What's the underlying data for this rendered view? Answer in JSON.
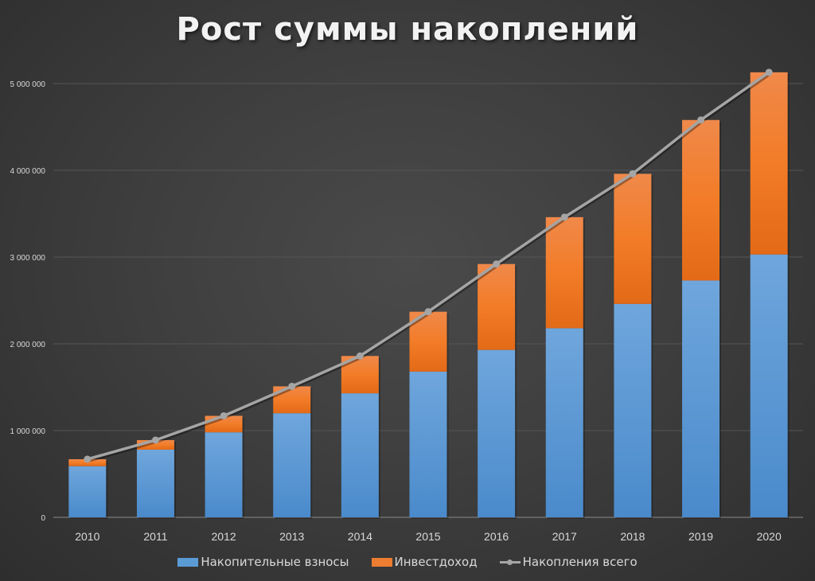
{
  "title": "Рост суммы накоплений",
  "colors": {
    "contributions": "#5b9bd5",
    "income": "#ed7d31",
    "total": "#a5a5a5",
    "axis_text": "#d9d9d9",
    "grid": "#5a5a5a"
  },
  "legend": {
    "contributions": "Накопительные взносы",
    "income": "Инвестдоход",
    "total": "Накопления всего"
  },
  "chart_data": {
    "type": "bar",
    "stacked": true,
    "title": "Рост суммы накоплений",
    "xlabel": "",
    "ylabel": "",
    "ylim": [
      0,
      5000000
    ],
    "y_ticks": [
      0,
      1000000,
      2000000,
      3000000,
      4000000,
      5000000
    ],
    "y_tick_labels": [
      "0",
      "1 000 000",
      "2 000 000",
      "3 000 000",
      "4 000 000",
      "5 000 000"
    ],
    "grid": true,
    "legend_position": "bottom",
    "categories": [
      "2010",
      "2011",
      "2012",
      "2013",
      "2014",
      "2015",
      "2016",
      "2017",
      "2018",
      "2019",
      "2020"
    ],
    "series": [
      {
        "name": "Накопительные взносы",
        "type": "bar",
        "values": [
          590000,
          780000,
          980000,
          1200000,
          1430000,
          1680000,
          1930000,
          2180000,
          2460000,
          2730000,
          3030000
        ]
      },
      {
        "name": "Инвестдоход",
        "type": "bar",
        "values": [
          80000,
          110000,
          190000,
          310000,
          430000,
          690000,
          990000,
          1280000,
          1500000,
          1850000,
          2100000
        ]
      },
      {
        "name": "Накопления всего",
        "type": "line",
        "values": [
          670000,
          890000,
          1170000,
          1510000,
          1860000,
          2370000,
          2920000,
          3460000,
          3960000,
          4580000,
          5130000
        ]
      }
    ]
  }
}
